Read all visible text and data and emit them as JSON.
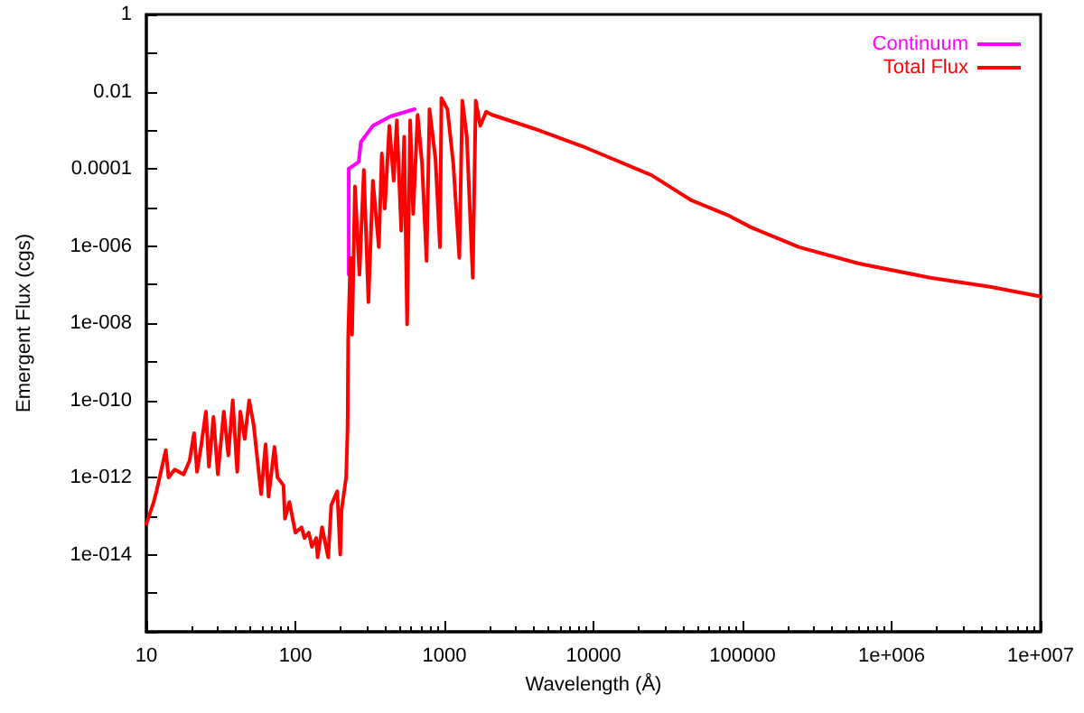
{
  "chart_data": {
    "type": "line",
    "xlabel": "Wavelength (Å)",
    "ylabel": "Emergent Flux (cgs)",
    "log": "xy",
    "grid": false,
    "legend": "top right",
    "marker": "none",
    "line_style": "solid",
    "xlim": [
      10,
      10000000
    ],
    "ylim": [
      1e-16,
      1
    ],
    "xticks": [
      10,
      100,
      1000,
      10000,
      100000,
      {
        "value": 1000000,
        "label": "1e+006"
      },
      {
        "value": 10000000,
        "label": "1e+007"
      }
    ],
    "yticks": [
      {
        "value": 1e-16,
        "label": null
      },
      {
        "value": 1e-15,
        "label": null
      },
      {
        "value": 1e-14,
        "label": "1e-014"
      },
      {
        "value": 1e-13,
        "label": null
      },
      {
        "value": 1e-12,
        "label": "1e-012"
      },
      {
        "value": 1e-11,
        "label": null
      },
      {
        "value": 1e-10,
        "label": "1e-010"
      },
      {
        "value": 1e-09,
        "label": null
      },
      {
        "value": 1e-08,
        "label": "1e-008"
      },
      {
        "value": 1e-07,
        "label": null
      },
      {
        "value": 1e-06,
        "label": "1e-006"
      },
      {
        "value": 1e-05,
        "label": null
      },
      0.0001,
      {
        "value": 0.001,
        "label": null
      },
      0.01,
      {
        "value": 0.1,
        "label": null
      },
      1
    ],
    "series": [
      {
        "name": "Continuum",
        "color": "#ff00ff",
        "x": [
          228,
          228,
          266,
          275,
          331,
          437,
          631
        ],
        "values": [
          1.8e-07,
          0.0001,
          0.00015,
          0.00049,
          0.0013,
          0.0023,
          0.0035
        ]
      },
      {
        "name": "Total Flux",
        "color": "#ff0000",
        "x": [
          10,
          11.2,
          11.7,
          13.5,
          14.1,
          15.5,
          17.8,
          19.5,
          20.9,
          21.9,
          23.4,
          25.1,
          26.3,
          28.2,
          30.2,
          33.1,
          35.5,
          38,
          40.7,
          42.7,
          45.7,
          49,
          52.5,
          58.9,
          63.1,
          66.1,
          72.4,
          75.9,
          83.2,
          85.1,
          91.2,
          100,
          110,
          115,
          123,
          129,
          138,
          141,
          151,
          166,
          174,
          191,
          200,
          204,
          219,
          224,
          226,
          234,
          240,
          251,
          269,
          288,
          309,
          331,
          363,
          380,
          398,
          427,
          457,
          479,
          513,
          537,
          562,
          589,
          617,
          661,
          708,
          759,
          794,
          871,
          933,
          955,
          1047,
          1148,
          1259,
          1318,
          1413,
          1549,
          1622,
          1738,
          1905,
          2089,
          3981,
          8913,
          24547,
          45709,
          79433,
          114815,
          239883,
          602560,
          1819701,
          4570882,
          10000000
        ],
        "values": [
          6.2e-14,
          2.3e-13,
          4.4e-13,
          5.1e-12,
          1e-12,
          1.6e-12,
          1.2e-12,
          2.7e-12,
          1.4e-11,
          1.4e-12,
          7.2e-12,
          5.1e-11,
          1.9e-12,
          3.7e-11,
          1.2e-12,
          5.1e-11,
          3.7e-12,
          1e-10,
          1.4e-12,
          5.1e-11,
          1e-11,
          1e-10,
          2.3e-11,
          3.7e-13,
          7.2e-12,
          3.2e-13,
          6.2e-12,
          1e-12,
          6.2e-13,
          8.5e-14,
          2.3e-13,
          3.7e-14,
          5.1e-14,
          2.7e-14,
          3.7e-14,
          1.6e-14,
          2.7e-14,
          8.5e-15,
          5.1e-14,
          8.5e-15,
          1.9e-13,
          4.4e-13,
          1e-14,
          1.4e-13,
          1e-12,
          1.9e-11,
          4e-09,
          4.9e-07,
          5e-09,
          3.5e-05,
          1.8e-07,
          9.3e-05,
          3.5e-08,
          4.9e-05,
          9.3e-07,
          0.00025,
          9.3e-06,
          0.0013,
          4.9e-05,
          0.0018,
          2.5e-06,
          0.00068,
          9.3e-09,
          0.0018,
          6.8e-06,
          0.0025,
          0.00013,
          4.1e-07,
          0.0035,
          0.00018,
          9.3e-07,
          0.0068,
          0.0035,
          0.00013,
          4.9e-07,
          0.0058,
          0.00068,
          1.5e-07,
          0.0058,
          0.0013,
          0.003,
          0.0025,
          0.0011,
          0.00035,
          6.8e-05,
          1.5e-05,
          6.3e-06,
          3e-06,
          9.3e-07,
          3.5e-07,
          1.5e-07,
          8.7e-08,
          4.9e-08
        ]
      }
    ]
  }
}
